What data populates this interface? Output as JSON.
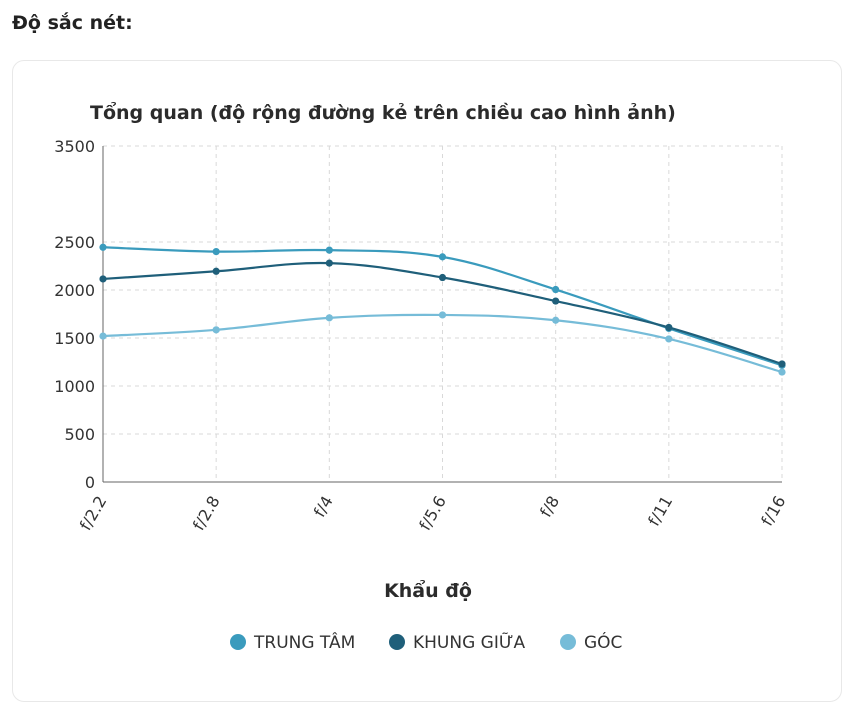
{
  "section_heading": "Độ sắc nét:",
  "chart_data": {
    "type": "line",
    "title": "Tổng quan (độ rộng đường kẻ trên chiều cao hình ảnh)",
    "xlabel": "Khẩu độ",
    "ylabel": "",
    "categories": [
      "f/2.2",
      "f/2.8",
      "f/4",
      "f/5.6",
      "f/8",
      "f/11",
      "f/16"
    ],
    "ylim": [
      0,
      3500
    ],
    "yticks": [
      "0",
      "500",
      "1000",
      "1500",
      "2000",
      "2500",
      "3500"
    ],
    "ytick_values": [
      0,
      500,
      1000,
      1500,
      2000,
      2500,
      3500
    ],
    "grid": true,
    "legend_position": "bottom",
    "series": [
      {
        "name": "TRUNG TÂM",
        "color": "#3a9bbd",
        "values": [
          2445,
          2400,
          2415,
          2345,
          2005,
          1600,
          1215
        ]
      },
      {
        "name": "KHUNG GIỮA",
        "color": "#1f5f7a",
        "values": [
          2115,
          2195,
          2280,
          2130,
          1885,
          1610,
          1230
        ]
      },
      {
        "name": "GÓC",
        "color": "#76bcd8",
        "values": [
          1520,
          1585,
          1710,
          1740,
          1685,
          1490,
          1145
        ]
      }
    ]
  }
}
